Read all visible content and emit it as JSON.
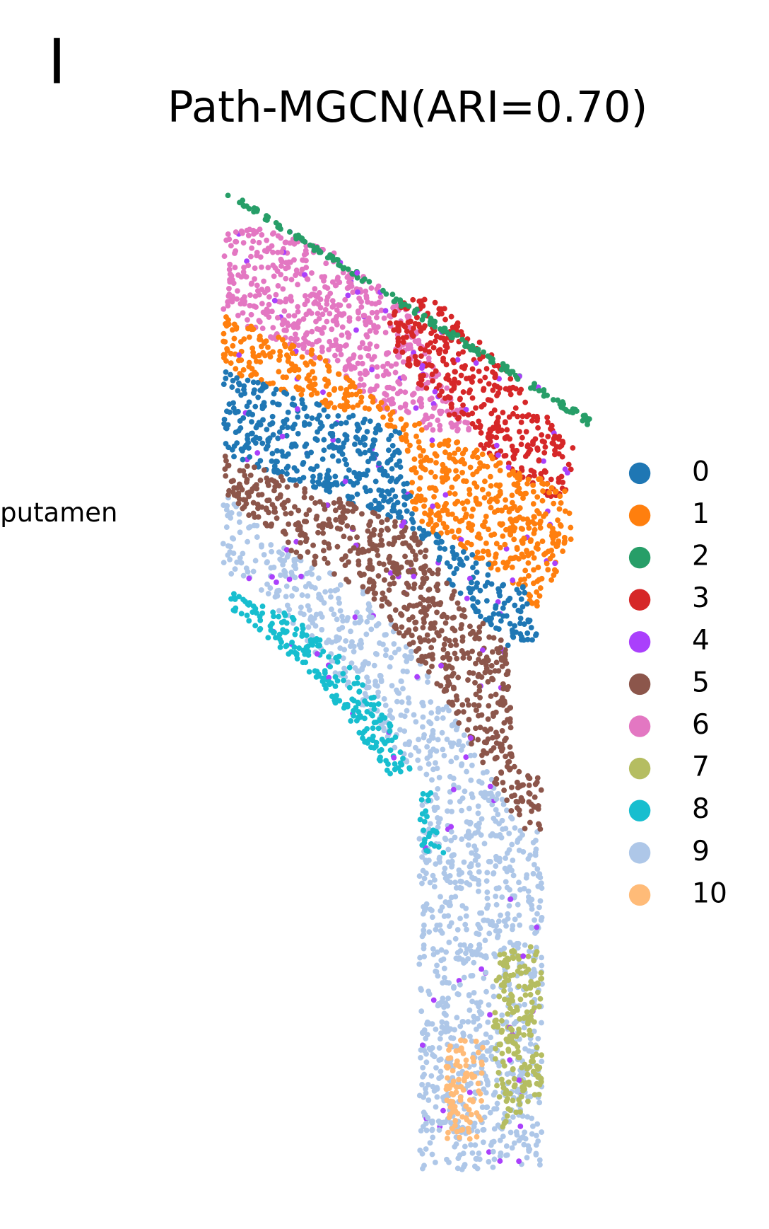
{
  "chart_data": {
    "type": "scatter",
    "panel_label": "I",
    "title": "Path-MGCN(ARI=0.70)",
    "annotation": "putamen",
    "legend": {
      "labels": [
        "0",
        "1",
        "2",
        "3",
        "4",
        "5",
        "6",
        "7",
        "8",
        "9",
        "10"
      ],
      "colors": [
        "#1f77b4",
        "#ff7f0e",
        "#279e68",
        "#d62728",
        "#aa40fc",
        "#8c564b",
        "#e377c2",
        "#b5bd61",
        "#17becf",
        "#aec7e8",
        "#ffbb78"
      ]
    }
  }
}
